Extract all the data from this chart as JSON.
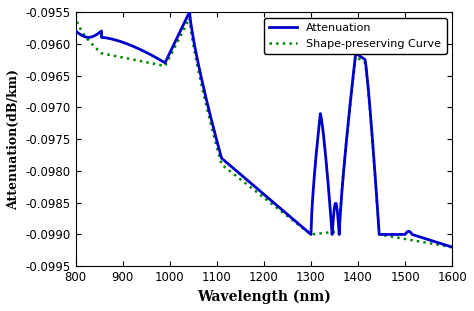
{
  "xlim": [
    800,
    1600
  ],
  "ylim": [
    -0.0995,
    -0.0955
  ],
  "xlabel": "Wavelength (nm)",
  "ylabel": "Attenuation(dB/km)",
  "xticks": [
    800,
    900,
    1000,
    1100,
    1200,
    1300,
    1400,
    1500,
    1600
  ],
  "yticks": [
    -0.0995,
    -0.099,
    -0.0985,
    -0.098,
    -0.0975,
    -0.097,
    -0.0965,
    -0.096,
    -0.0955
  ],
  "legend_attenuation": "Attenuation",
  "legend_shape": "Shape-preserving Curve",
  "line_color": "#0000CC",
  "shape_color": "#008800",
  "background_color": "#ffffff"
}
